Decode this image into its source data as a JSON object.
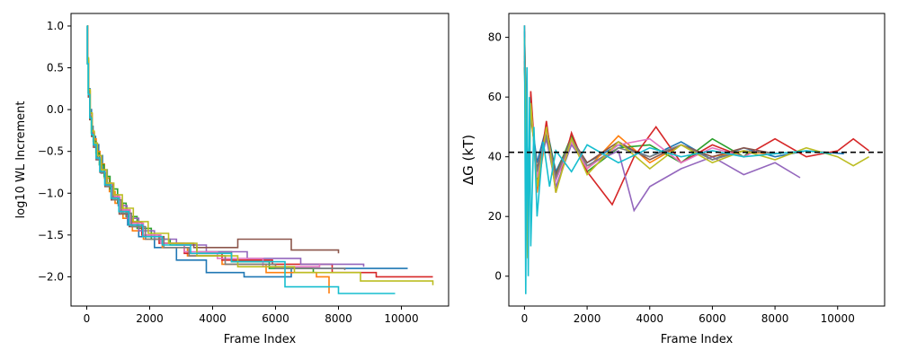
{
  "chart_data": [
    {
      "type": "line",
      "step": true,
      "title": "",
      "xlabel": "Frame Index",
      "ylabel": "log10 WL Increment",
      "xlim": [
        -500,
        11500
      ],
      "ylim": [
        -2.35,
        1.15
      ],
      "xticks": [
        0,
        2000,
        4000,
        6000,
        8000,
        10000
      ],
      "xtick_labels": [
        "0",
        "2000",
        "4000",
        "6000",
        "8000",
        "10000"
      ],
      "yticks": [
        -2.0,
        -1.5,
        -1.0,
        -0.5,
        0.0,
        0.5,
        1.0
      ],
      "ytick_labels": [
        "−2.0",
        "−1.5",
        "−1.0",
        "−0.5",
        "0.0",
        "0.5",
        "1.0"
      ],
      "grid": false,
      "legend": "none",
      "series": [
        {
          "color": "#1f77b4",
          "x": [
            0,
            20,
            50,
            100,
            150,
            200,
            280,
            380,
            500,
            650,
            850,
            1050,
            1300,
            1650,
            2150,
            2850,
            3800,
            5000,
            6500,
            8500,
            10200
          ],
          "y": [
            1.0,
            0.6,
            0.25,
            0.0,
            -0.2,
            -0.32,
            -0.42,
            -0.55,
            -0.72,
            -0.9,
            -1.05,
            -1.22,
            -1.38,
            -1.52,
            -1.65,
            -1.8,
            -1.95,
            -2.0,
            -1.9,
            -1.9,
            -1.9
          ]
        },
        {
          "color": "#ff7f0e",
          "x": [
            0,
            25,
            55,
            105,
            160,
            210,
            300,
            420,
            560,
            720,
            900,
            1150,
            1450,
            1800,
            2400,
            3200,
            4300,
            5700,
            7300,
            7700
          ],
          "y": [
            1.0,
            0.6,
            0.2,
            -0.05,
            -0.25,
            -0.35,
            -0.5,
            -0.65,
            -0.82,
            -0.98,
            -1.12,
            -1.3,
            -1.45,
            -1.55,
            -1.65,
            -1.75,
            -1.85,
            -1.95,
            -2.0,
            -2.2
          ]
        },
        {
          "color": "#2ca02c",
          "x": [
            0,
            20,
            45,
            95,
            145,
            205,
            290,
            400,
            550,
            740,
            980,
            1250,
            1600,
            2050,
            2650,
            3500,
            4600,
            5800,
            7200
          ],
          "y": [
            1.0,
            0.55,
            0.2,
            -0.1,
            -0.28,
            -0.38,
            -0.52,
            -0.66,
            -0.8,
            -0.95,
            -1.12,
            -1.28,
            -1.42,
            -1.55,
            -1.62,
            -1.7,
            -1.82,
            -1.9,
            -1.95
          ]
        },
        {
          "color": "#d62728",
          "x": [
            0,
            30,
            60,
            110,
            170,
            240,
            340,
            470,
            630,
            820,
            1050,
            1350,
            1750,
            2300,
            3100,
            4300,
            5900,
            7800,
            9200,
            11000
          ],
          "y": [
            1.0,
            0.58,
            0.22,
            -0.05,
            -0.28,
            -0.42,
            -0.58,
            -0.75,
            -0.9,
            -1.05,
            -1.2,
            -1.35,
            -1.5,
            -1.6,
            -1.72,
            -1.8,
            -1.85,
            -1.95,
            -2.0,
            -2.0
          ]
        },
        {
          "color": "#9467bd",
          "x": [
            0,
            25,
            55,
            100,
            155,
            220,
            310,
            430,
            590,
            780,
            1000,
            1280,
            1650,
            2150,
            2850,
            3800,
            5100,
            6800,
            8800
          ],
          "y": [
            1.0,
            0.6,
            0.2,
            -0.08,
            -0.3,
            -0.45,
            -0.6,
            -0.75,
            -0.88,
            -1.02,
            -1.15,
            -1.3,
            -1.45,
            -1.55,
            -1.62,
            -1.7,
            -1.78,
            -1.85,
            -1.88
          ]
        },
        {
          "color": "#8c564b",
          "x": [
            0,
            20,
            50,
            95,
            150,
            215,
            300,
            420,
            580,
            780,
            1030,
            1350,
            1800,
            2450,
            3400,
            4800,
            6500,
            8000
          ],
          "y": [
            1.0,
            0.55,
            0.15,
            -0.12,
            -0.32,
            -0.45,
            -0.6,
            -0.75,
            -0.92,
            -1.08,
            -1.25,
            -1.4,
            -1.52,
            -1.6,
            -1.65,
            -1.55,
            -1.68,
            -1.72
          ]
        },
        {
          "color": "#e377c2",
          "x": [
            0,
            22,
            52,
            100,
            158,
            225,
            320,
            440,
            600,
            800,
            1050,
            1380,
            1800,
            2350,
            3100,
            4150,
            5600,
            7400
          ],
          "y": [
            1.0,
            0.6,
            0.2,
            -0.06,
            -0.26,
            -0.4,
            -0.55,
            -0.72,
            -0.88,
            -1.04,
            -1.2,
            -1.36,
            -1.5,
            -1.6,
            -1.7,
            -1.78,
            -1.88,
            -1.85
          ]
        },
        {
          "color": "#7f7f7f",
          "x": [
            0,
            24,
            54,
            104,
            162,
            232,
            330,
            455,
            620,
            830,
            1090,
            1420,
            1870,
            2450,
            3250,
            4400,
            6000,
            8200
          ],
          "y": [
            1.0,
            0.58,
            0.2,
            -0.08,
            -0.3,
            -0.44,
            -0.6,
            -0.76,
            -0.92,
            -1.08,
            -1.24,
            -1.4,
            -1.55,
            -1.65,
            -1.75,
            -1.85,
            -1.9,
            -1.92
          ]
        },
        {
          "color": "#bcbd22",
          "x": [
            0,
            26,
            58,
            112,
            170,
            240,
            340,
            470,
            640,
            860,
            1130,
            1480,
            1950,
            2600,
            3500,
            4800,
            6600,
            8700,
            11000
          ],
          "y": [
            1.0,
            0.62,
            0.24,
            -0.04,
            -0.26,
            -0.4,
            -0.55,
            -0.72,
            -0.88,
            -1.02,
            -1.18,
            -1.34,
            -1.48,
            -1.6,
            -1.75,
            -1.88,
            -1.95,
            -2.05,
            -2.1
          ]
        },
        {
          "color": "#17becf",
          "x": [
            0,
            20,
            48,
            96,
            150,
            212,
            300,
            415,
            570,
            770,
            1020,
            1340,
            1780,
            2400,
            3300,
            4600,
            6300,
            8000,
            9800
          ],
          "y": [
            1.0,
            0.55,
            0.18,
            -0.1,
            -0.3,
            -0.42,
            -0.58,
            -0.74,
            -0.9,
            -1.06,
            -1.22,
            -1.38,
            -1.52,
            -1.62,
            -1.72,
            -1.82,
            -2.12,
            -2.2,
            -2.2
          ]
        }
      ]
    },
    {
      "type": "line",
      "title": "",
      "xlabel": "Frame Index",
      "ylabel": "ΔG (kT)",
      "xlim": [
        -500,
        11500
      ],
      "ylim": [
        -10,
        88
      ],
      "xticks": [
        0,
        2000,
        4000,
        6000,
        8000,
        10000
      ],
      "xtick_labels": [
        "0",
        "2000",
        "4000",
        "6000",
        "8000",
        "10000"
      ],
      "yticks": [
        0,
        20,
        40,
        60,
        80
      ],
      "ytick_labels": [
        "0",
        "20",
        "40",
        "60",
        "80"
      ],
      "grid": false,
      "legend": "none",
      "reference_line": {
        "y": 41.5,
        "style": "dashed",
        "color": "#000000"
      },
      "series": [
        {
          "color": "#1f77b4",
          "x": [
            0,
            100,
            200,
            400,
            700,
            1000,
            1500,
            2000,
            3000,
            4000,
            5000,
            6000,
            7000,
            8000,
            9000,
            10200
          ],
          "y": [
            82,
            30,
            55,
            38,
            50,
            35,
            46,
            38,
            44,
            40,
            45,
            39,
            43,
            40,
            42,
            41
          ]
        },
        {
          "color": "#ff7f0e",
          "x": [
            0,
            100,
            200,
            400,
            700,
            1000,
            1500,
            2000,
            3000,
            4000,
            5000,
            6000,
            7000,
            7700
          ],
          "y": [
            75,
            20,
            60,
            28,
            48,
            33,
            45,
            36,
            47,
            38,
            44,
            40,
            42,
            41
          ]
        },
        {
          "color": "#2ca02c",
          "x": [
            0,
            100,
            200,
            400,
            700,
            1000,
            1500,
            2000,
            3000,
            4000,
            5000,
            6000,
            7000,
            7200
          ],
          "y": [
            70,
            25,
            58,
            32,
            50,
            34,
            47,
            35,
            43,
            44,
            38,
            46,
            40,
            42
          ]
        },
        {
          "color": "#d62728",
          "x": [
            0,
            100,
            200,
            400,
            700,
            1000,
            1500,
            2000,
            2800,
            3500,
            4200,
            5000,
            6000,
            7000,
            8000,
            9000,
            10000,
            10500,
            11000
          ],
          "y": [
            84,
            18,
            62,
            30,
            52,
            28,
            48,
            35,
            24,
            40,
            50,
            38,
            44,
            40,
            46,
            40,
            42,
            46,
            42
          ]
        },
        {
          "color": "#9467bd",
          "x": [
            0,
            100,
            200,
            400,
            700,
            1000,
            1500,
            2000,
            3000,
            3500,
            4000,
            5000,
            6000,
            7000,
            8000,
            8800
          ],
          "y": [
            78,
            22,
            56,
            34,
            46,
            30,
            44,
            37,
            42,
            22,
            30,
            36,
            40,
            34,
            38,
            33
          ]
        },
        {
          "color": "#8c564b",
          "x": [
            0,
            100,
            200,
            400,
            700,
            1000,
            1500,
            2000,
            3000,
            4000,
            5000,
            6000,
            7000,
            8000
          ],
          "y": [
            72,
            28,
            54,
            36,
            48,
            34,
            46,
            38,
            45,
            39,
            44,
            40,
            43,
            41
          ]
        },
        {
          "color": "#e377c2",
          "x": [
            0,
            100,
            200,
            400,
            700,
            1000,
            1500,
            2000,
            3000,
            4000,
            5000,
            6000,
            7000,
            7400
          ],
          "y": [
            76,
            24,
            57,
            33,
            49,
            32,
            45,
            36,
            44,
            46,
            38,
            43,
            40,
            42
          ]
        },
        {
          "color": "#7f7f7f",
          "x": [
            0,
            100,
            200,
            400,
            700,
            1000,
            1500,
            2000,
            3000,
            4000,
            5000,
            6000,
            7000,
            8200
          ],
          "y": [
            74,
            26,
            55,
            35,
            47,
            33,
            46,
            37,
            43,
            40,
            44,
            39,
            42,
            41
          ]
        },
        {
          "color": "#bcbd22",
          "x": [
            0,
            100,
            200,
            400,
            700,
            1000,
            1500,
            2000,
            3000,
            4000,
            5000,
            6000,
            7000,
            8000,
            9000,
            10000,
            10500,
            11000
          ],
          "y": [
            80,
            6,
            58,
            30,
            50,
            28,
            46,
            34,
            45,
            36,
            44,
            38,
            42,
            39,
            43,
            40,
            37,
            40
          ]
        },
        {
          "color": "#17becf",
          "x": [
            0,
            40,
            80,
            120,
            160,
            200,
            300,
            400,
            600,
            800,
            1000,
            1500,
            2000,
            3000,
            4000,
            5000,
            6000,
            7000,
            8000,
            9000,
            9800
          ],
          "y": [
            84,
            -6,
            70,
            0,
            60,
            10,
            50,
            20,
            45,
            30,
            42,
            35,
            44,
            38,
            43,
            40,
            42,
            40,
            41,
            42,
            41
          ]
        }
      ]
    }
  ]
}
